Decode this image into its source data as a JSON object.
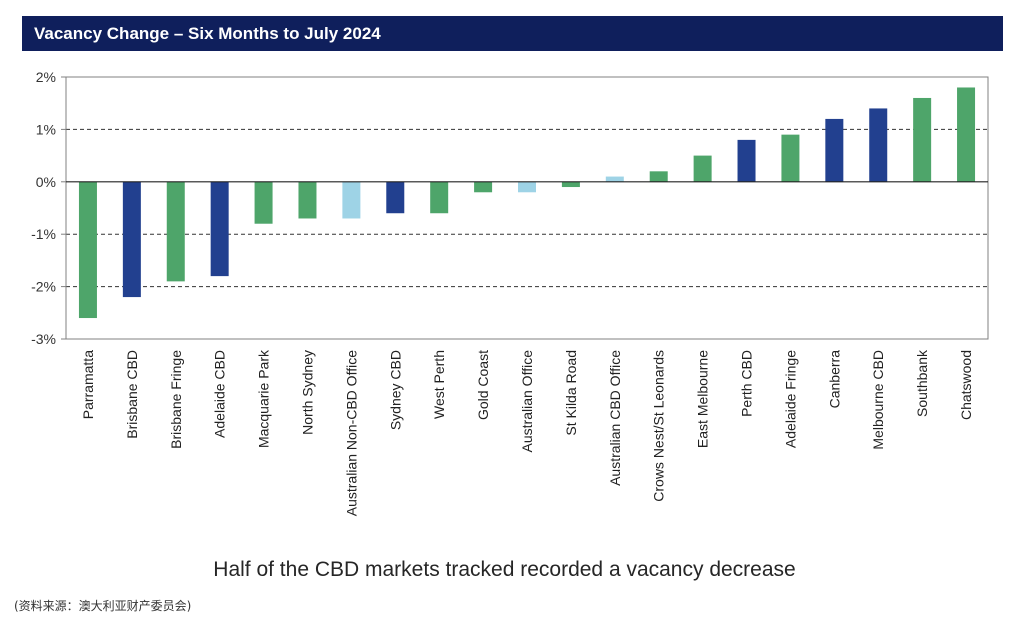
{
  "title": "Vacancy Change – Six Months to July 2024",
  "caption": "Half of the CBD markets tracked recorded a vacancy decrease",
  "source": "(资料来源：澳大利亚财产委员会)",
  "colors": {
    "green": "#4ea56a",
    "navy": "#22408f",
    "light_blue": "#9ed3e6",
    "title_bg": "#0f1f5c"
  },
  "chart_data": {
    "type": "bar",
    "ylim": [
      -3,
      2
    ],
    "y_ticks": [
      "-3%",
      "-2%",
      "-1%",
      "0%",
      "1%",
      "2%"
    ],
    "grid": "dashed horizontal at 1%, -1%, -2%",
    "categories": [
      "Parramatta",
      "Brisbane CBD",
      "Brisbane Fringe",
      "Adelaide CBD",
      "Macquarie Park",
      "North Sydney",
      "Australian Non-CBD Office",
      "Sydney CBD",
      "West Perth",
      "Gold Coast",
      "Australian Office",
      "St Kilda Road",
      "Australian CBD Office",
      "Crows Nest/St Leonards",
      "East Melbourne",
      "Perth CBD",
      "Adelaide Fringe",
      "Canberra",
      "Melbourne CBD",
      "Southbank",
      "Chatswood"
    ],
    "values": [
      -2.6,
      -2.2,
      -1.9,
      -1.8,
      -0.8,
      -0.7,
      -0.7,
      -0.6,
      -0.6,
      -0.2,
      -0.2,
      -0.1,
      0.1,
      0.2,
      0.5,
      0.8,
      0.9,
      1.2,
      1.4,
      1.6,
      1.8
    ],
    "bar_colors": [
      "green",
      "navy",
      "green",
      "navy",
      "green",
      "green",
      "light_blue",
      "navy",
      "green",
      "green",
      "light_blue",
      "green",
      "light_blue",
      "green",
      "green",
      "navy",
      "green",
      "navy",
      "navy",
      "green",
      "green"
    ]
  }
}
